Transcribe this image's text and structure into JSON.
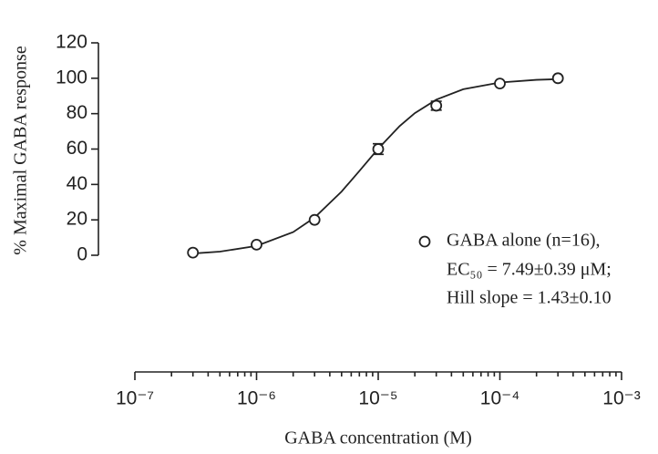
{
  "chart_data": {
    "type": "scatter",
    "xlabel": "GABA concentration (M)",
    "ylabel": "% Maximal GABA response",
    "xscale": "log",
    "xlim": [
      1e-07,
      0.001
    ],
    "xticks": [
      {
        "value": 1e-07,
        "label": "10⁻⁷"
      },
      {
        "value": 1e-06,
        "label": "10⁻⁶"
      },
      {
        "value": 1e-05,
        "label": "10⁻⁵"
      },
      {
        "value": 0.0001,
        "label": "10⁻⁴"
      },
      {
        "value": 0.001,
        "label": "10⁻³"
      }
    ],
    "xminorticks": [
      2e-07,
      3e-07,
      4e-07,
      5e-07,
      6e-07,
      7e-07,
      8e-07,
      9e-07,
      2e-06,
      3e-06,
      4e-06,
      5e-06,
      6e-06,
      7e-06,
      8e-06,
      9e-06,
      2e-05,
      3e-05,
      4e-05,
      5e-05,
      6e-05,
      7e-05,
      8e-05,
      9e-05,
      0.0002,
      0.0003,
      0.0004,
      0.0005,
      0.0006,
      0.0007,
      0.0008,
      0.0009
    ],
    "ylim": [
      0,
      120
    ],
    "yticks": [
      0,
      20,
      40,
      60,
      80,
      100,
      120
    ],
    "grid": false,
    "series": [
      {
        "name": "GABA alone (n=16),",
        "color": "#222222",
        "x": [
          3e-07,
          1e-06,
          3e-06,
          1e-05,
          3e-05,
          0.0001,
          0.0003
        ],
        "values": [
          1.5,
          6,
          20,
          60,
          84.5,
          97,
          100
        ],
        "errors": [
          null,
          null,
          null,
          3,
          2.5,
          null,
          null
        ]
      }
    ],
    "curve": {
      "color": "#222222",
      "x": [
        3e-07,
        5e-07,
        1e-06,
        2e-06,
        3e-06,
        5e-06,
        7e-06,
        1e-05,
        1.5e-05,
        2e-05,
        3e-05,
        5e-05,
        0.0001,
        0.0002,
        0.0003
      ],
      "values": [
        0.99,
        2.04,
        5.3,
        13.1,
        21.3,
        36.0,
        47.6,
        60.2,
        73.0,
        80.3,
        87.9,
        93.8,
        97.6,
        99.1,
        99.5
      ]
    },
    "annotations": [
      "EC₅₀ = 7.49±0.39 μM;",
      "Hill slope = 1.43±0.10"
    ]
  }
}
